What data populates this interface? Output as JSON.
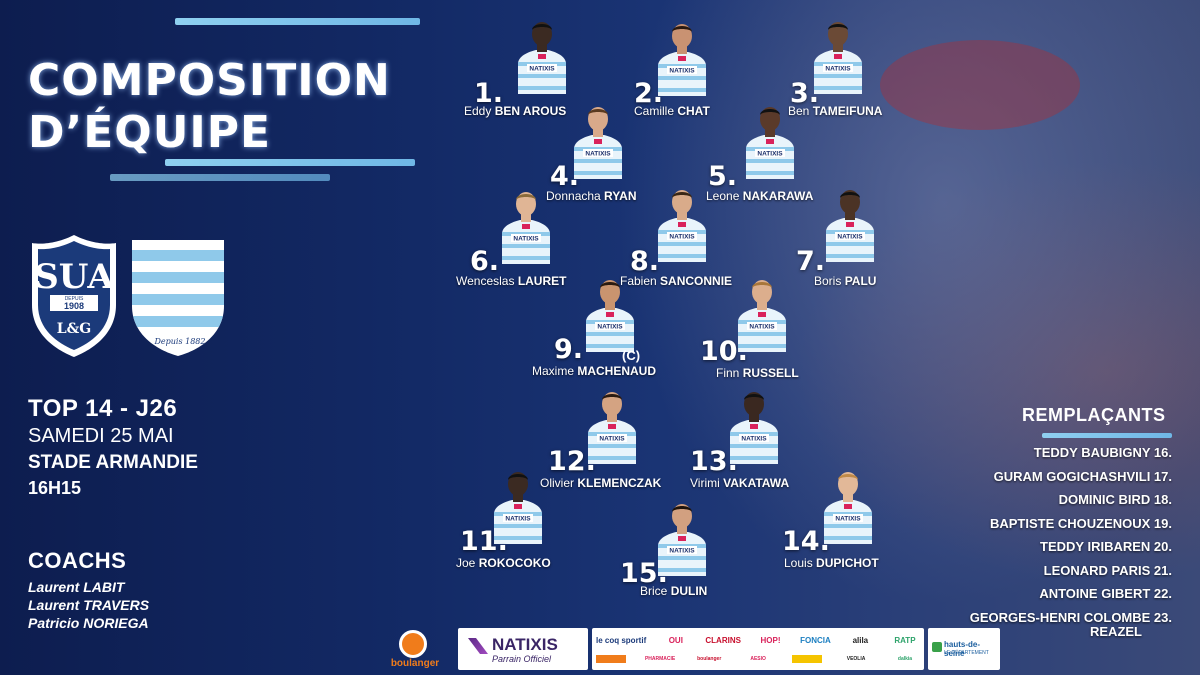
{
  "title_line1": "COMPOSITION",
  "title_line2": "D’ÉQUIPE",
  "crest": {
    "club": "SUA",
    "year": "1908",
    "since": "DEPUIS",
    "initials": "L&G",
    "racing_motto": "Depuis 1882"
  },
  "match": {
    "competition": "TOP 14 - J26",
    "date": "SAMEDI 25 MAI",
    "stadium": "STADE ARMANDIE",
    "time": "16H15"
  },
  "coachs": {
    "heading": "COACHS",
    "names": [
      "Laurent LABIT",
      "Laurent TRAVERS",
      "Patricio NORIEGA"
    ]
  },
  "players": [
    {
      "num": "1.",
      "first": "Eddy",
      "last": "BEN AROUS"
    },
    {
      "num": "2.",
      "first": "Camille",
      "last": "CHAT"
    },
    {
      "num": "3.",
      "first": "Ben",
      "last": "TAMEIFUNA"
    },
    {
      "num": "4.",
      "first": "Donnacha",
      "last": "RYAN"
    },
    {
      "num": "5.",
      "first": "Leone",
      "last": "NAKARAWA"
    },
    {
      "num": "6.",
      "first": "Wenceslas",
      "last": "LAURET"
    },
    {
      "num": "8.",
      "first": "Fabien",
      "last": "SANCONNIE"
    },
    {
      "num": "7.",
      "first": "Boris",
      "last": "PALU"
    },
    {
      "num": "9.",
      "first": "Maxime",
      "last": "MACHENAUD",
      "tag": "(C)"
    },
    {
      "num": "10.",
      "first": "Finn",
      "last": "RUSSELL"
    },
    {
      "num": "12.",
      "first": "Olivier",
      "last": "KLEMENCZAK"
    },
    {
      "num": "13.",
      "first": "Virimi",
      "last": "VAKATAWA"
    },
    {
      "num": "11.",
      "first": "Joe",
      "last": "ROKOCOKO"
    },
    {
      "num": "14.",
      "first": "Louis",
      "last": "DUPICHOT"
    },
    {
      "num": "15.",
      "first": "Brice",
      "last": "DULIN"
    }
  ],
  "jersey_sponsor": "NATIXIS",
  "subs": {
    "heading": "REMPLAÇANTS",
    "list": [
      "TEDDY BAUBIGNY 16.",
      "GURAM GOGICHASHVILI 17.",
      "DOMINIC BIRD 18.",
      "BAPTISTE CHOUZENOUX 19.",
      "TEDDY IRIBAREN 20.",
      "LEONARD PARIS 21.",
      "ANTOINE GIBERT 22.",
      "GEORGES-HENRI COLOMBE  23.",
      "REAZEL"
    ]
  },
  "sponsors": {
    "boulanger": "boulanger",
    "natixis": "NATIXIS",
    "natixis_sub": "Parrain Officiel",
    "row1": [
      "le coq sportif",
      "OUI",
      "CLARINS",
      "HOP!",
      "FONCIA",
      "alila",
      "RATP"
    ],
    "row2": [
      "",
      "PHARMACIE",
      "boulanger",
      "AESIO",
      "",
      "VEOLIA",
      "dalkia"
    ],
    "hauts_de_seine": "hauts-de-seine",
    "hauts_de_seine_sub": "LE DÉPARTEMENT"
  },
  "colors": {
    "navy": "#0f1f52",
    "sky": "#8fd0f0",
    "pink": "#d9225b"
  }
}
